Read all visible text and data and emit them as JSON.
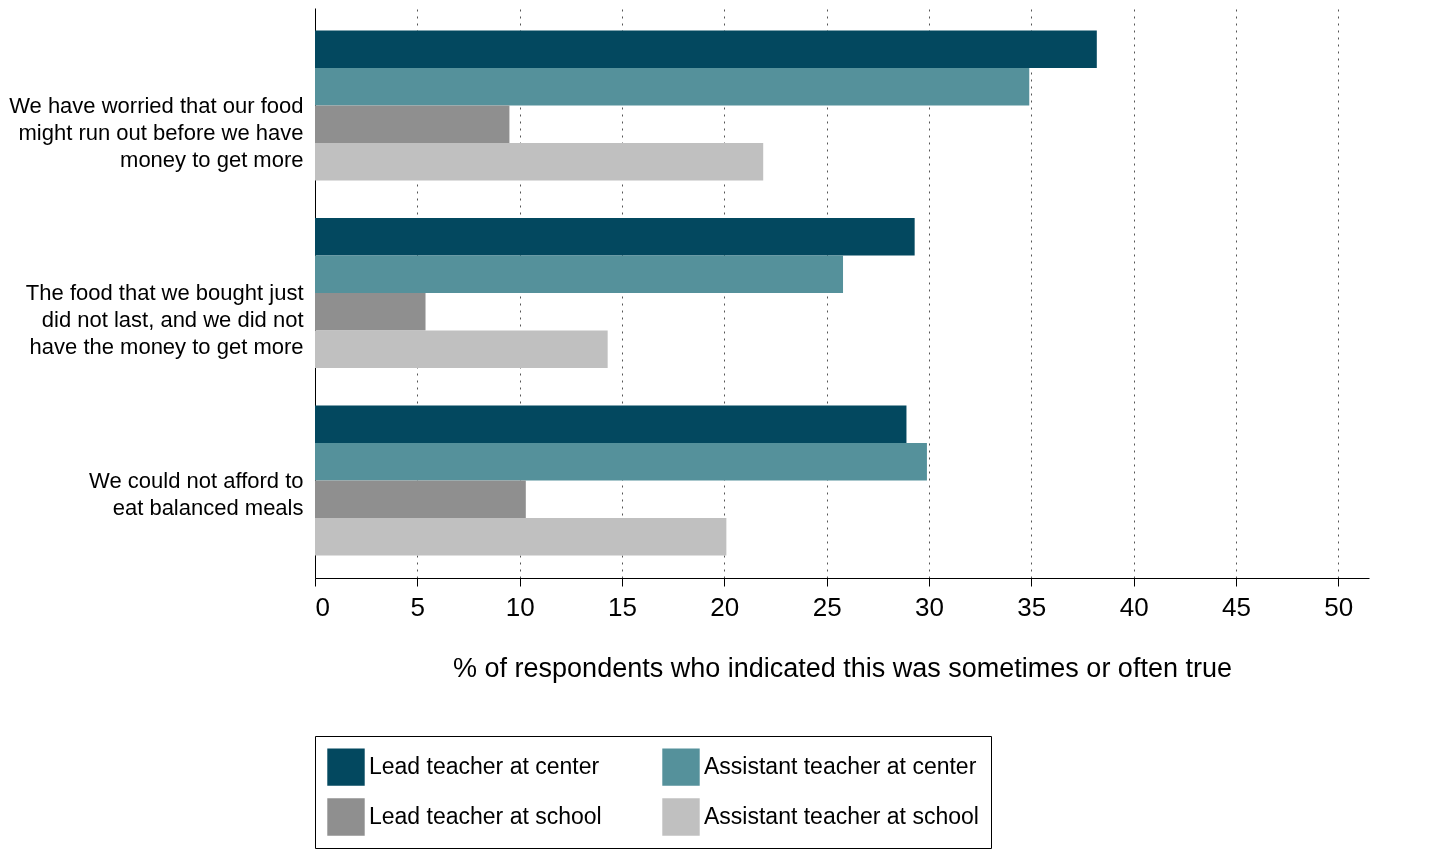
{
  "chart_data": {
    "type": "bar",
    "orientation": "horizontal",
    "xlabel": "% of respondents who indicated this was sometimes or often true",
    "categories": [
      "We have worried that our food\nmight run out before we have\nmoney to get more",
      "The food that we bought just\ndid not last, and we did not\nhave the money to get more",
      "We could not afford to\neat balanced meals"
    ],
    "series": [
      {
        "name": "Lead teacher at center",
        "color": "#03485f",
        "values": [
          38.2,
          29.3,
          28.9
        ]
      },
      {
        "name": "Assistant teacher at center",
        "color": "#55919b",
        "values": [
          34.9,
          25.8,
          29.9
        ]
      },
      {
        "name": "Lead teacher at school",
        "color": "#8f8f8f",
        "values": [
          9.5,
          5.4,
          10.3
        ]
      },
      {
        "name": "Assistant teacher at school",
        "color": "#c0c0c0",
        "values": [
          21.9,
          14.3,
          20.1
        ]
      }
    ],
    "xlim": [
      0,
      51.5
    ],
    "xticks": [
      0,
      5,
      10,
      15,
      20,
      25,
      30,
      35,
      40,
      45,
      50
    ],
    "grid": "x",
    "legend": "bottom"
  }
}
